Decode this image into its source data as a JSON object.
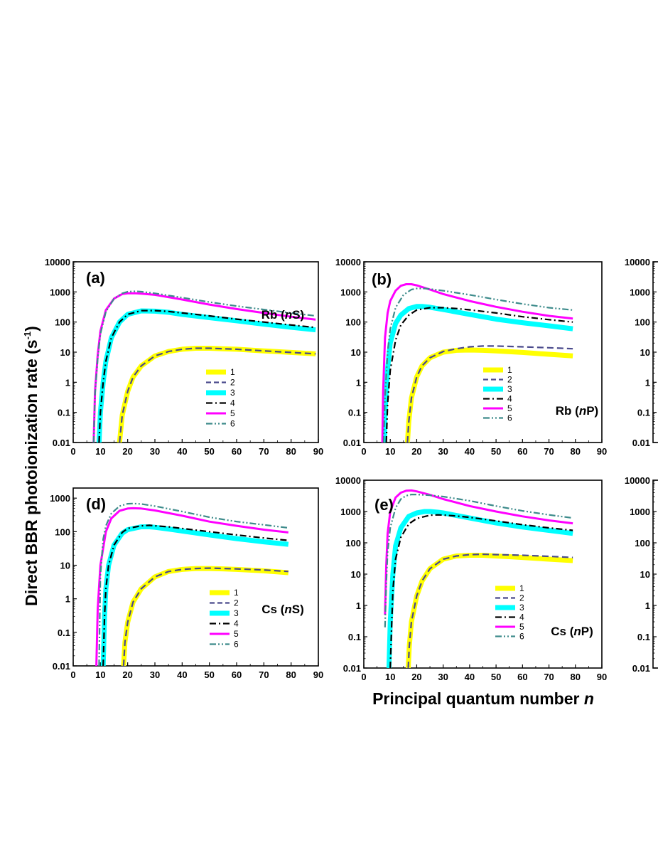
{
  "figure": {
    "ylabel": "Direct BBR photoionization rate (s",
    "ylabel_sup": "-1",
    "ylabel_close": ")",
    "xlabel": "Principal quantum number ",
    "xlabel_italic": "n"
  },
  "series_styles": [
    {
      "id": "1",
      "color": "#ffff00",
      "dash": "solid",
      "weight": "thick"
    },
    {
      "id": "2",
      "color": "#4a4a8c",
      "dash": "dash",
      "weight": "normal"
    },
    {
      "id": "3",
      "color": "#00ffff",
      "dash": "solid",
      "weight": "thick"
    },
    {
      "id": "4",
      "color": "#000000",
      "dash": "dash-dot",
      "weight": "normal"
    },
    {
      "id": "5",
      "color": "#ff00ff",
      "dash": "solid",
      "weight": "medium"
    },
    {
      "id": "6",
      "color": "#3d8b8b",
      "dash": "dash-dot-dot",
      "weight": "normal"
    }
  ],
  "chart_data": [
    {
      "type": "line",
      "panel": "(a)",
      "species_pre": "Rb (",
      "species_it": "n",
      "species_post": "S)",
      "xlim": [
        0,
        90
      ],
      "xticks": [
        0,
        10,
        20,
        30,
        40,
        50,
        60,
        70,
        80,
        90
      ],
      "yscale": "log",
      "ylim": [
        0.01,
        10000
      ],
      "yticks": [
        0.01,
        0.1,
        1,
        10,
        100,
        1000,
        10000
      ],
      "ytick_labels": [
        "0.01",
        "0.1",
        "1",
        "10",
        "100",
        "1000",
        "10000"
      ],
      "legend_labels": [
        "1",
        "2",
        "3",
        "4",
        "5",
        "6"
      ],
      "legend_position": "middle-right",
      "series": [
        {
          "name": "1",
          "x": [
            17,
            18,
            20,
            22,
            25,
            30,
            35,
            40,
            45,
            50,
            55,
            60,
            70,
            80,
            89
          ],
          "y": [
            0.01,
            0.08,
            0.5,
            1.5,
            3.5,
            7.5,
            10.5,
            12.5,
            13.5,
            13.5,
            13,
            12.5,
            11,
            9.8,
            8.8
          ]
        },
        {
          "name": "2",
          "x": [
            17,
            18,
            20,
            22,
            25,
            30,
            35,
            40,
            45,
            50,
            55,
            60,
            70,
            80,
            89
          ],
          "y": [
            0.01,
            0.08,
            0.5,
            1.5,
            3.5,
            7.5,
            10.5,
            12.5,
            13.5,
            13.5,
            13,
            12.5,
            11,
            9.8,
            8.8
          ]
        },
        {
          "name": "3",
          "x": [
            9.5,
            10,
            11,
            12,
            14,
            17,
            20,
            25,
            30,
            35,
            40,
            50,
            60,
            70,
            80,
            89
          ],
          "y": [
            0.01,
            0.1,
            1,
            5,
            30,
            100,
            180,
            235,
            230,
            210,
            180,
            140,
            110,
            85,
            67,
            55
          ]
        },
        {
          "name": "4",
          "x": [
            9.5,
            10,
            11,
            12,
            14,
            17,
            20,
            25,
            30,
            35,
            40,
            50,
            60,
            70,
            80,
            89
          ],
          "y": [
            0.01,
            0.1,
            1,
            5,
            30,
            100,
            180,
            240,
            240,
            225,
            200,
            160,
            125,
            100,
            80,
            66
          ]
        },
        {
          "name": "5",
          "x": [
            7.5,
            8,
            9,
            10,
            12,
            15,
            18,
            20,
            23,
            25,
            30,
            40,
            50,
            60,
            70,
            80,
            89
          ],
          "y": [
            0.01,
            0.5,
            8,
            50,
            250,
            600,
            850,
            900,
            900,
            880,
            800,
            560,
            380,
            270,
            200,
            150,
            120
          ]
        },
        {
          "name": "6",
          "x": [
            7.5,
            8,
            9,
            10,
            12,
            15,
            18,
            20,
            23,
            25,
            30,
            40,
            50,
            60,
            70,
            80,
            89
          ],
          "y": [
            0.01,
            0.4,
            6,
            40,
            220,
            600,
            900,
            1020,
            1050,
            1020,
            900,
            650,
            460,
            340,
            260,
            200,
            160
          ]
        }
      ]
    },
    {
      "type": "line",
      "panel": "(b)",
      "species_pre": "Rb (",
      "species_it": "n",
      "species_post": "P)",
      "xlim": [
        0,
        90
      ],
      "xticks": [
        0,
        10,
        20,
        30,
        40,
        50,
        60,
        70,
        80,
        90
      ],
      "yscale": "log",
      "ylim": [
        0.01,
        10000
      ],
      "yticks": [
        0.01,
        0.1,
        1,
        10,
        100,
        1000,
        10000
      ],
      "ytick_labels": [
        "0.01",
        "0.1",
        "1",
        "10",
        "100",
        "1000",
        "10000"
      ],
      "legend_labels": [
        "1",
        "2",
        "3",
        "4",
        "5",
        "6"
      ],
      "legend_position": "middle-right",
      "series": [
        {
          "name": "1",
          "x": [
            16.5,
            17,
            18,
            20,
            22,
            25,
            30,
            35,
            40,
            45,
            50,
            60,
            70,
            79
          ],
          "y": [
            0.01,
            0.05,
            0.3,
            1.5,
            3.5,
            6.5,
            10,
            11.5,
            11.8,
            11.5,
            11,
            9.8,
            8.5,
            7.5
          ]
        },
        {
          "name": "2",
          "x": [
            16.5,
            17,
            18,
            20,
            22,
            25,
            30,
            35,
            40,
            45,
            50,
            60,
            70,
            79
          ],
          "y": [
            0.01,
            0.05,
            0.3,
            1.5,
            3.5,
            6.5,
            10.5,
            13,
            15,
            16,
            16,
            15,
            14,
            13
          ]
        },
        {
          "name": "3",
          "x": [
            7.8,
            8,
            9,
            10,
            12,
            14,
            17,
            20,
            22,
            25,
            30,
            40,
            50,
            60,
            70,
            79
          ],
          "y": [
            0.01,
            0.1,
            3,
            20,
            90,
            170,
            280,
            330,
            330,
            310,
            260,
            180,
            125,
            95,
            75,
            60
          ]
        },
        {
          "name": "4",
          "x": [
            8.5,
            9,
            10,
            12,
            14,
            17,
            20,
            25,
            30,
            35,
            40,
            50,
            60,
            70,
            79
          ],
          "y": [
            0.01,
            0.2,
            2.5,
            25,
            80,
            170,
            250,
            300,
            300,
            280,
            255,
            200,
            150,
            120,
            100
          ]
        },
        {
          "name": "5",
          "x": [
            7,
            7.3,
            8,
            9,
            10,
            12,
            14,
            16,
            18,
            20,
            25,
            30,
            40,
            50,
            60,
            70,
            79
          ],
          "y": [
            0.01,
            0.5,
            30,
            200,
            500,
            1100,
            1600,
            1800,
            1800,
            1650,
            1200,
            850,
            500,
            320,
            220,
            160,
            130
          ]
        },
        {
          "name": "6",
          "x": [
            7.5,
            8,
            9,
            10,
            12,
            15,
            18,
            20,
            23,
            25,
            30,
            40,
            50,
            60,
            70,
            79
          ],
          "y": [
            0.01,
            0.3,
            10,
            60,
            300,
            800,
            1200,
            1300,
            1300,
            1250,
            1100,
            800,
            560,
            400,
            300,
            250
          ]
        }
      ]
    },
    {
      "type": "line",
      "panel": "(d)",
      "species_pre": "Cs (",
      "species_it": "n",
      "species_post": "S)",
      "xlim": [
        0,
        90
      ],
      "xticks": [
        0,
        10,
        20,
        30,
        40,
        50,
        60,
        70,
        80,
        90
      ],
      "yscale": "log",
      "ylim": [
        0.01,
        2000
      ],
      "yticks": [
        0.01,
        0.1,
        1,
        10,
        100,
        1000
      ],
      "ytick_labels": [
        "0.01",
        "0.1",
        "1",
        "10",
        "100",
        "1000"
      ],
      "legend_labels": [
        "1",
        "2",
        "3",
        "4",
        "5",
        "6"
      ],
      "legend_position": "middle-right",
      "series": [
        {
          "name": "1",
          "x": [
            18.5,
            19,
            20,
            22,
            25,
            30,
            35,
            40,
            45,
            50,
            55,
            60,
            70,
            79
          ],
          "y": [
            0.01,
            0.05,
            0.2,
            0.8,
            2,
            4.5,
            6.5,
            7.5,
            8,
            8,
            7.8,
            7.5,
            6.8,
            6
          ]
        },
        {
          "name": "2",
          "x": [
            18.5,
            19,
            20,
            22,
            25,
            30,
            35,
            40,
            45,
            50,
            55,
            60,
            70,
            79
          ],
          "y": [
            0.01,
            0.05,
            0.2,
            0.8,
            2,
            4.5,
            6.5,
            7.5,
            8,
            8.2,
            8,
            7.8,
            7.2,
            6.5
          ]
        },
        {
          "name": "3",
          "x": [
            11,
            11.5,
            12,
            13,
            15,
            18,
            20,
            25,
            28,
            30,
            35,
            40,
            50,
            60,
            70,
            79
          ],
          "y": [
            0.01,
            0.3,
            2,
            10,
            40,
            90,
            115,
            140,
            140,
            135,
            120,
            105,
            80,
            62,
            50,
            42
          ]
        },
        {
          "name": "4",
          "x": [
            11,
            11.5,
            12,
            13,
            15,
            18,
            20,
            25,
            28,
            30,
            35,
            40,
            50,
            60,
            70,
            79
          ],
          "y": [
            0.01,
            0.3,
            2,
            10,
            40,
            95,
            125,
            150,
            155,
            150,
            140,
            125,
            100,
            80,
            65,
            55
          ]
        },
        {
          "name": "5",
          "x": [
            8.5,
            9,
            10,
            12,
            14,
            17,
            20,
            22,
            25,
            30,
            40,
            50,
            60,
            70,
            79
          ],
          "y": [
            0.01,
            0.5,
            10,
            100,
            250,
            420,
            490,
            500,
            490,
            430,
            300,
            200,
            150,
            115,
            95
          ]
        },
        {
          "name": "6",
          "x": [
            9.5,
            10,
            11,
            12,
            14,
            17,
            20,
            22,
            25,
            30,
            40,
            50,
            60,
            70,
            79
          ],
          "y": [
            0.01,
            5,
            60,
            150,
            350,
            580,
            680,
            690,
            670,
            580,
            400,
            270,
            200,
            160,
            130
          ]
        }
      ]
    },
    {
      "type": "line",
      "panel": "(e)",
      "species_pre": "Cs (",
      "species_it": "n",
      "species_post": "P)",
      "xlim": [
        0,
        90
      ],
      "xticks": [
        0,
        10,
        20,
        30,
        40,
        50,
        60,
        70,
        80,
        90
      ],
      "yscale": "log",
      "ylim": [
        0.01,
        10000
      ],
      "yticks": [
        0.01,
        0.1,
        1,
        10,
        100,
        1000,
        10000
      ],
      "ytick_labels": [
        "0.01",
        "0.1",
        "1",
        "10",
        "100",
        "1000",
        "10000"
      ],
      "legend_labels": [
        "1",
        "2",
        "3",
        "4",
        "5",
        "6"
      ],
      "legend_position": "middle-right",
      "series": [
        {
          "name": "1",
          "x": [
            16.8,
            17.2,
            18,
            20,
            22,
            25,
            30,
            35,
            40,
            45,
            50,
            55,
            60,
            70,
            79
          ],
          "y": [
            0.01,
            0.05,
            0.3,
            2,
            6,
            15,
            30,
            38,
            40,
            40,
            38,
            36,
            34,
            30,
            27
          ]
        },
        {
          "name": "2",
          "x": [
            16.8,
            17.2,
            18,
            20,
            22,
            25,
            30,
            35,
            40,
            45,
            50,
            55,
            60,
            70,
            79
          ],
          "y": [
            0.01,
            0.05,
            0.3,
            2,
            6,
            15,
            30,
            38,
            42,
            43,
            42,
            41,
            40,
            37,
            34
          ]
        },
        {
          "name": "3",
          "x": [
            9.5,
            10,
            11,
            12,
            14,
            17,
            20,
            23,
            25,
            28,
            30,
            40,
            50,
            60,
            70,
            79
          ],
          "y": [
            0.01,
            0.3,
            10,
            80,
            300,
            700,
            900,
            1000,
            1000,
            950,
            900,
            620,
            430,
            320,
            250,
            200
          ]
        },
        {
          "name": "4",
          "x": [
            10,
            10.5,
            11,
            12,
            14,
            17,
            20,
            25,
            28,
            30,
            35,
            40,
            50,
            60,
            70,
            79
          ],
          "y": [
            0.01,
            0.2,
            3,
            30,
            150,
            400,
            600,
            760,
            780,
            770,
            720,
            650,
            500,
            380,
            300,
            250
          ]
        },
        {
          "name": "5",
          "x": [
            8,
            8.5,
            9,
            10,
            12,
            14,
            16,
            18,
            20,
            25,
            30,
            40,
            50,
            60,
            70,
            79
          ],
          "y": [
            0.5,
            20,
            200,
            1000,
            2800,
            4000,
            4600,
            4700,
            4400,
            3400,
            2500,
            1500,
            1000,
            700,
            520,
            420
          ]
        },
        {
          "name": "6",
          "x": [
            8,
            8.5,
            9,
            10,
            12,
            14,
            16,
            18,
            20,
            25,
            30,
            40,
            50,
            60,
            70,
            79
          ],
          "y": [
            0.2,
            5,
            50,
            300,
            1300,
            2500,
            3200,
            3500,
            3500,
            3300,
            3000,
            2200,
            1500,
            1050,
            780,
            620
          ]
        }
      ]
    },
    {
      "type": "line",
      "panel": "",
      "partial": true,
      "xlim": [
        0,
        90
      ],
      "yscale": "log",
      "ylim": [
        0.01,
        10000
      ],
      "yticks": [
        0.01,
        0.1,
        1,
        10,
        100,
        1000,
        10000
      ],
      "ytick_labels": [
        "0.01",
        "0.1",
        "1",
        "10",
        "100",
        "1000",
        "10000"
      ],
      "series": []
    },
    {
      "type": "line",
      "panel": "",
      "partial": true,
      "xlim": [
        0,
        90
      ],
      "yscale": "log",
      "ylim": [
        0.01,
        10000
      ],
      "yticks": [
        0.01,
        0.1,
        1,
        10,
        100,
        1000,
        10000
      ],
      "ytick_labels": [
        "0.01",
        "0.1",
        "1",
        "10",
        "100",
        "1000",
        "10000"
      ],
      "series": []
    }
  ]
}
